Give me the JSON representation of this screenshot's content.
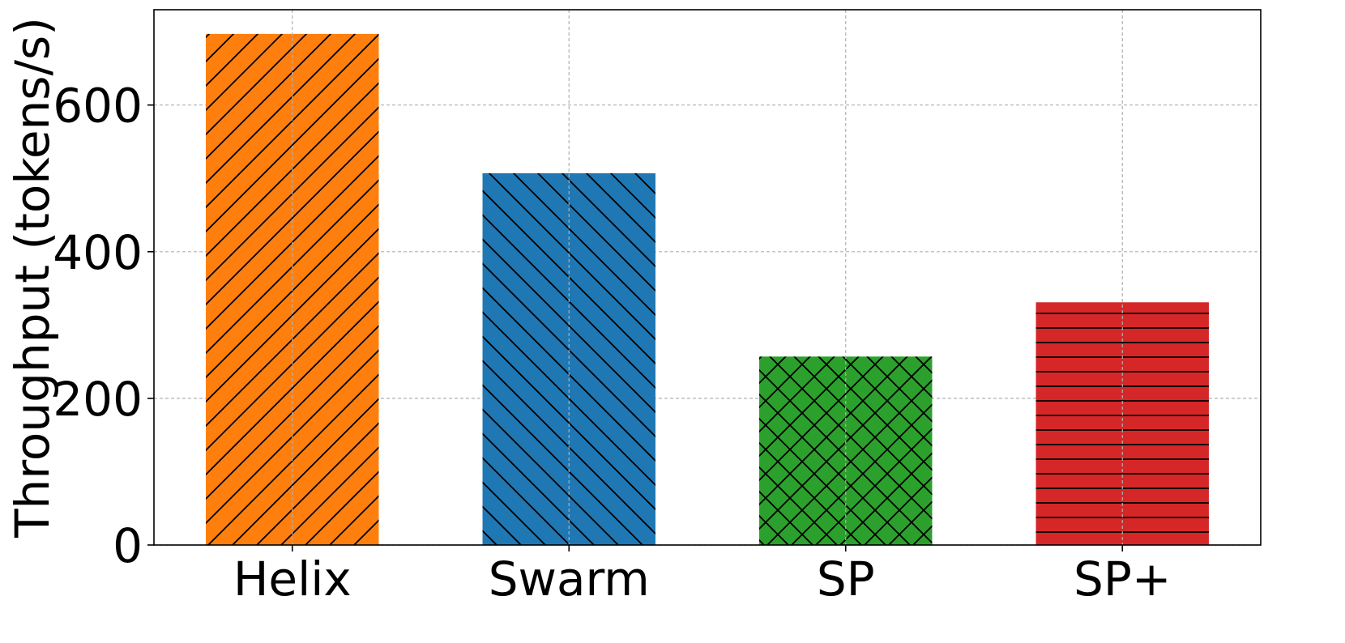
{
  "chart_data": {
    "type": "bar",
    "title": "",
    "xlabel": "",
    "ylabel": "Throughput (tokens/s)",
    "categories": [
      "Helix",
      "Swarm",
      "SP",
      "SP+"
    ],
    "values": [
      697,
      507,
      257,
      331
    ],
    "colors": [
      "#ff7f0e",
      "#1f77b4",
      "#2ca02c",
      "#d62728"
    ],
    "hatches": [
      "/",
      "\\",
      "x",
      "-"
    ],
    "ylim": [
      0,
      730
    ],
    "yticks": [
      0,
      200,
      400,
      600
    ],
    "grid": true
  }
}
